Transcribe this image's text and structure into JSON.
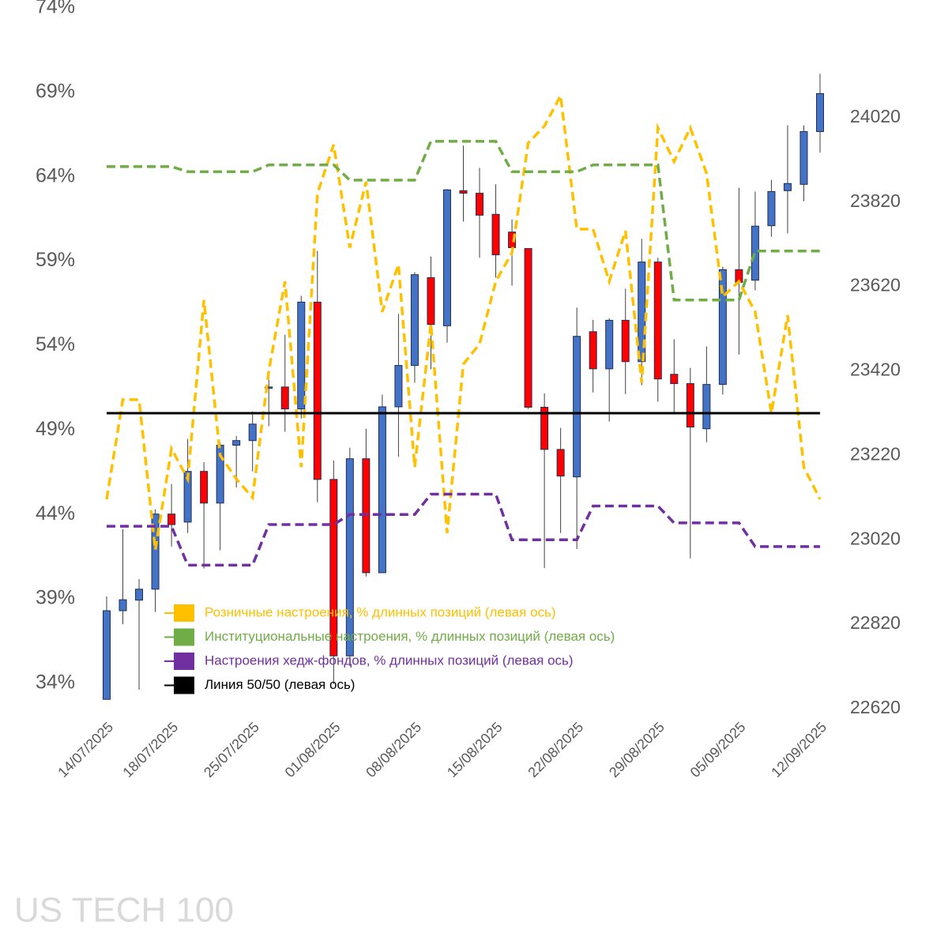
{
  "chart_data": {
    "type": "candlestick",
    "watermark": "US TECH 100",
    "categories": [
      "14/07/2025",
      null,
      null,
      null,
      "18/07/2025",
      null,
      null,
      null,
      null,
      "25/07/2025",
      null,
      null,
      null,
      null,
      "01/08/2025",
      null,
      null,
      null,
      null,
      "08/08/2025",
      null,
      null,
      null,
      null,
      "15/08/2025",
      null,
      null,
      null,
      null,
      "22/08/2025",
      null,
      null,
      null,
      null,
      "29/08/2025",
      null,
      null,
      null,
      null,
      "05/09/2025",
      null,
      null,
      null,
      null,
      "12/09/2025"
    ],
    "candles": {
      "axis": "y2",
      "up_color": "#4472c4",
      "down_color": "#ff0000",
      "open": [
        22642,
        22852,
        22877,
        22903,
        23081,
        23062,
        23182,
        23107,
        23244,
        23255,
        23379,
        23382,
        23330,
        23583,
        23163,
        22745,
        23212,
        22942,
        23335,
        23433,
        23641,
        23527,
        23847,
        23841,
        23791,
        23749,
        23710,
        23334,
        23234,
        23169,
        23513,
        23425,
        23540,
        23442,
        23678,
        23412,
        23390,
        23283,
        23388,
        23660,
        23635,
        23764,
        23847,
        23862,
        23987
      ],
      "high": [
        22886,
        23045,
        22927,
        23092,
        23152,
        23259,
        23204,
        23251,
        23266,
        23324,
        23420,
        23506,
        23598,
        23704,
        23208,
        23238,
        23283,
        23364,
        23555,
        23654,
        23691,
        23851,
        23954,
        23901,
        23862,
        23779,
        23710,
        23367,
        23285,
        23570,
        23541,
        23545,
        23615,
        23733,
        23688,
        23495,
        23427,
        23478,
        23667,
        23854,
        23845,
        23873,
        24002,
        24002,
        24124
      ],
      "low": [
        22642,
        22820,
        22665,
        22849,
        23004,
        23036,
        22952,
        22995,
        23144,
        23182,
        23289,
        23276,
        23307,
        23109,
        22678,
        22721,
        22933,
        22942,
        23217,
        23392,
        23424,
        23487,
        23774,
        23688,
        23641,
        23622,
        23330,
        22953,
        23036,
        22998,
        23369,
        23300,
        23365,
        23386,
        23347,
        23319,
        22976,
        23251,
        23364,
        23459,
        23611,
        23738,
        23746,
        23822,
        23937
      ],
      "close": [
        22852,
        22878,
        22903,
        23081,
        23056,
        23182,
        23107,
        23244,
        23255,
        23294,
        23382,
        23330,
        23583,
        23163,
        22745,
        23212,
        22942,
        23335,
        23433,
        23648,
        23530,
        23849,
        23841,
        23789,
        23695,
        23712,
        23334,
        23234,
        23171,
        23502,
        23425,
        23540,
        23442,
        23678,
        23401,
        23390,
        23287,
        23388,
        23660,
        23630,
        23763,
        23845,
        23864,
        23987,
        24077
      ]
    },
    "series": [
      {
        "name": "Розничные настроения, % длинных позиций (левая ось)",
        "color": "#ffc000",
        "dashed": true,
        "values": [
          44.9,
          50.8,
          50.8,
          41.9,
          47.9,
          46.1,
          56.7,
          47.5,
          46.1,
          45.0,
          52.5,
          57.8,
          46.8,
          63.0,
          65.9,
          59.8,
          63.7,
          56.0,
          58.8,
          46.8,
          55.3,
          42.9,
          52.9,
          54.1,
          57.8,
          59.5,
          66.0,
          67.0,
          68.8,
          60.9,
          60.9,
          57.8,
          60.8,
          51.8,
          66.9,
          64.9,
          66.9,
          64.2,
          56.9,
          57.8,
          56.0,
          50.0,
          55.8,
          46.8,
          44.9
        ]
      },
      {
        "name": "Институциональные настроения, % длинных позиций (левая ось)",
        "color": "#70ad47",
        "dashed": true,
        "values": [
          64.6,
          64.6,
          64.6,
          64.6,
          64.6,
          64.3,
          64.3,
          64.3,
          64.3,
          64.3,
          64.7,
          64.7,
          64.7,
          64.7,
          64.7,
          63.8,
          63.8,
          63.8,
          63.8,
          63.8,
          66.1,
          66.1,
          66.1,
          66.1,
          66.1,
          64.3,
          64.3,
          64.3,
          64.3,
          64.3,
          64.7,
          64.7,
          64.7,
          64.7,
          64.7,
          56.7,
          56.7,
          56.7,
          56.7,
          56.7,
          59.6,
          59.6,
          59.6,
          59.6,
          59.6
        ]
      },
      {
        "name": "Настроения хедж-фондов, % длинных позиций (левая ось)",
        "color": "#7030a0",
        "dashed": true,
        "values": [
          43.3,
          43.3,
          43.3,
          43.3,
          43.3,
          41.0,
          41.0,
          41.0,
          41.0,
          41.0,
          43.4,
          43.4,
          43.4,
          43.4,
          43.4,
          44.0,
          44.0,
          44.0,
          44.0,
          44.0,
          45.2,
          45.2,
          45.2,
          45.2,
          45.2,
          42.5,
          42.5,
          42.5,
          42.5,
          42.5,
          44.5,
          44.5,
          44.5,
          44.5,
          44.5,
          43.5,
          43.5,
          43.5,
          43.5,
          43.5,
          42.1,
          42.1,
          42.1,
          42.1,
          42.1
        ]
      },
      {
        "name": "Линия 50/50 (левая ось)",
        "color": "#000000",
        "dashed": false,
        "values": [
          50,
          50,
          50,
          50,
          50,
          50,
          50,
          50,
          50,
          50,
          50,
          50,
          50,
          50,
          50,
          50,
          50,
          50,
          50,
          50,
          50,
          50,
          50,
          50,
          50,
          50,
          50,
          50,
          50,
          50,
          50,
          50,
          50,
          50,
          50,
          50,
          50,
          50,
          50,
          50,
          50,
          50,
          50,
          50,
          50
        ]
      }
    ],
    "ylim": [
      32.5,
      74
    ],
    "yticks": [
      {
        "value": 34,
        "label": "34%"
      },
      {
        "value": 39,
        "label": "39%"
      },
      {
        "value": 44,
        "label": "44%"
      },
      {
        "value": 49,
        "label": "49%"
      },
      {
        "value": 54,
        "label": "54%"
      },
      {
        "value": 59,
        "label": "59%"
      },
      {
        "value": 64,
        "label": "64%"
      },
      {
        "value": 69,
        "label": "69%"
      },
      {
        "value": 74,
        "label": "74%"
      }
    ],
    "y2lim": [
      22620,
      24280
    ],
    "y2ticks": [
      22620,
      22820,
      23020,
      23220,
      23420,
      23620,
      23820,
      24020
    ],
    "grid": false
  }
}
